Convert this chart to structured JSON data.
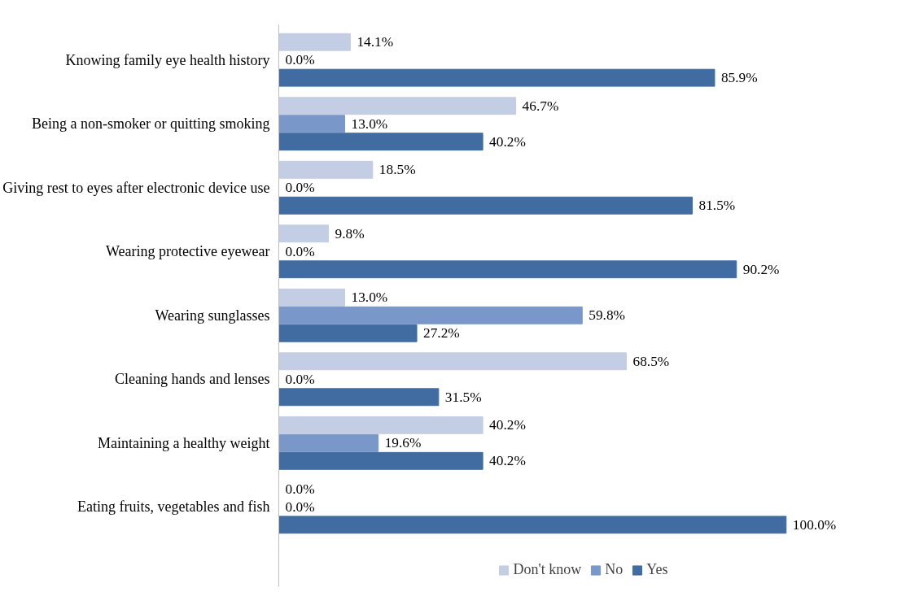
{
  "chart_data": {
    "type": "bar",
    "orientation": "horizontal",
    "categories": [
      "Knowing family eye health history",
      "Being a non-smoker or quitting smoking",
      "Giving rest to eyes after electronic device use",
      "Wearing protective eyewear",
      "Wearing sunglasses",
      "Cleaning hands and lenses",
      "Maintaining a healthy weight",
      "Eating fruits, vegetables and fish"
    ],
    "series": [
      {
        "name": "Don't know",
        "color": "#c3cde3",
        "values": [
          14.1,
          46.7,
          18.5,
          9.8,
          13.0,
          68.5,
          40.2,
          0.0
        ],
        "value_labels": [
          "14.1%",
          "46.7%",
          "18.5%",
          "9.8%",
          "13.0%",
          "68.5%",
          "40.2%",
          "0.0%"
        ]
      },
      {
        "name": "No",
        "color": "#7a97c9",
        "values": [
          0.0,
          13.0,
          0.0,
          0.0,
          59.8,
          0.0,
          19.6,
          0.0
        ],
        "value_labels": [
          "0.0%",
          "13.0%",
          "0.0%",
          "0.0%",
          "59.8%",
          "0.0%",
          "19.6%",
          "0.0%"
        ]
      },
      {
        "name": "Yes",
        "color": "#416ca1",
        "values": [
          85.9,
          40.2,
          81.5,
          90.2,
          27.2,
          31.5,
          40.2,
          100.0
        ],
        "value_labels": [
          "85.9%",
          "40.2%",
          "81.5%",
          "90.2%",
          "27.2%",
          "31.5%",
          "40.2%",
          "100.0%"
        ]
      }
    ],
    "xlim": [
      0,
      100
    ],
    "grid": false,
    "legend": "bottom"
  }
}
